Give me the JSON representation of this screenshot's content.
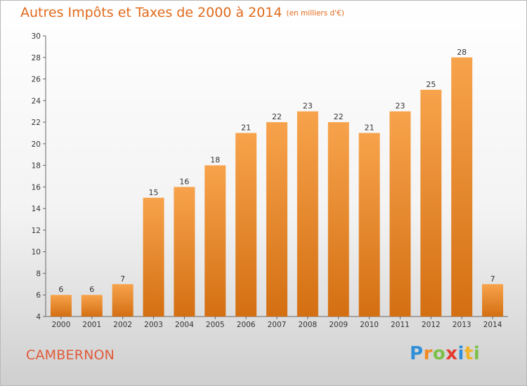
{
  "title": "Autres Impôts et Taxes de 2000 à 2014",
  "subtitle": "(en milliers d'€)",
  "commune": "CAMBERNON",
  "logo": {
    "letters": [
      "P",
      "r",
      "o",
      "x",
      "i",
      "t",
      "i"
    ],
    "colors": [
      "#2f8fd8",
      "#f08a24",
      "#7cc04a",
      "#e53a2f",
      "#2f8fd8",
      "#f0b424",
      "#7cc04a"
    ]
  },
  "colors": {
    "bar_top": "#f7a34c",
    "bar_bottom": "#d46f12",
    "accent": "#e06a1b"
  },
  "chart_data": {
    "type": "bar",
    "categories": [
      "2000",
      "2001",
      "2002",
      "2003",
      "2004",
      "2005",
      "2006",
      "2007",
      "2008",
      "2009",
      "2010",
      "2011",
      "2012",
      "2013",
      "2014"
    ],
    "values": [
      6,
      6,
      7,
      15,
      16,
      18,
      21,
      22,
      23,
      22,
      21,
      23,
      25,
      28,
      7
    ],
    "ylim": [
      4,
      30
    ],
    "yticks": [
      4,
      6,
      8,
      10,
      12,
      14,
      16,
      18,
      20,
      22,
      24,
      26,
      28,
      30
    ],
    "grid": false
  }
}
